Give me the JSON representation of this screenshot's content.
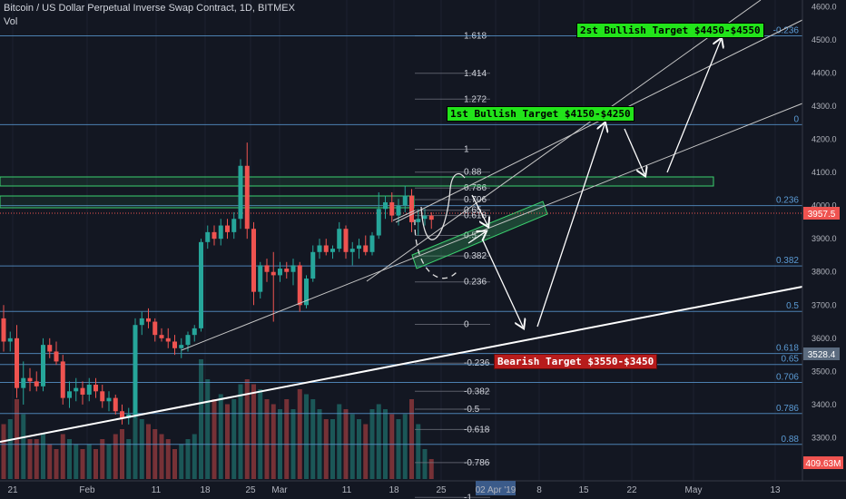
{
  "header": {
    "title": "Bitcoin / US Dollar Perpetual Inverse Swap Contract, 1D, BITMEX",
    "vol_label": "Vol"
  },
  "annotations": {
    "bull2": "2st Bullish Target $4450-$4550",
    "bull1": "1st Bullish Target $4150-$4250",
    "bear": "Bearish Target $3550-$3450"
  },
  "colors": {
    "background": "#131722",
    "up": "#26a69a",
    "down": "#ef5350",
    "fib_line": "#5b9bd5",
    "green_box": "#3bd16f",
    "trendline": "#ffffff"
  },
  "chart_data": {
    "type": "candlestick",
    "symbol": "Bitcoin / US Dollar Perpetual Inverse Swap Contract",
    "timeframe": "1D",
    "exchange": "BITMEX",
    "ylim": [
      3170,
      4620
    ],
    "y_ticks": [
      3300,
      3400,
      3500,
      3600,
      3700,
      3800,
      3900,
      4000,
      4100,
      4200,
      4300,
      4400,
      4500,
      4600
    ],
    "y_tick_labels": [
      "3300.0",
      "3400.0",
      "3500.0",
      "3600.0",
      "3700.0",
      "3800.0",
      "3900.0",
      "4000.0",
      "4100.0",
      "4200.0",
      "4300.0",
      "4400.0",
      "4500.0",
      "4600.0"
    ],
    "x_tick_labels": [
      "21",
      "Feb",
      "11",
      "18",
      "25",
      "Mar",
      "11",
      "18",
      "25",
      "02 Apr '19",
      "8",
      "15",
      "22",
      "May",
      "13"
    ],
    "price_labels": {
      "last": "3957.5",
      "secondary": "3528.4",
      "volume": "409.63M"
    },
    "fib_right": [
      {
        "level": "-0.236",
        "price": 4512
      },
      {
        "level": "0",
        "price": 4244
      },
      {
        "level": "0.236",
        "price": 4000
      },
      {
        "level": "0.382",
        "price": 3818
      },
      {
        "level": "0.5",
        "price": 3681
      },
      {
        "level": "0.618",
        "price": 3554
      },
      {
        "level": "0.65",
        "price": 3521
      },
      {
        "level": "0.706",
        "price": 3467
      },
      {
        "level": "0.786",
        "price": 3373
      },
      {
        "level": "0.88",
        "price": 3280
      }
    ],
    "fib_mid": [
      {
        "level": "1.618",
        "price": 4512
      },
      {
        "level": "1.414",
        "price": 4399
      },
      {
        "level": "1.272",
        "price": 4321
      },
      {
        "level": "1",
        "price": 4170
      },
      {
        "level": "0.88",
        "price": 4101
      },
      {
        "level": "0.786",
        "price": 4053
      },
      {
        "level": "0.706",
        "price": 4018
      },
      {
        "level": "0.65",
        "price": 3986
      },
      {
        "level": "0.618",
        "price": 3970
      },
      {
        "level": "0.5",
        "price": 3910
      },
      {
        "level": "0.382",
        "price": 3848
      },
      {
        "level": "0.236",
        "price": 3770
      },
      {
        "level": "0",
        "price": 3642
      },
      {
        "level": "-0.236",
        "price": 3525
      },
      {
        "level": "-0.382",
        "price": 3440
      },
      {
        "level": "-0.5",
        "price": 3386
      },
      {
        "level": "-0.618",
        "price": 3325
      },
      {
        "level": "-0.786",
        "price": 3225
      },
      {
        "level": "-1",
        "price": 3120
      }
    ],
    "candles": [
      {
        "o": 3660,
        "h": 3700,
        "l": 3560,
        "c": 3590
      },
      {
        "o": 3590,
        "h": 3620,
        "l": 3560,
        "c": 3600
      },
      {
        "o": 3600,
        "h": 3640,
        "l": 3420,
        "c": 3450
      },
      {
        "o": 3450,
        "h": 3530,
        "l": 3400,
        "c": 3480
      },
      {
        "o": 3480,
        "h": 3510,
        "l": 3440,
        "c": 3470
      },
      {
        "o": 3470,
        "h": 3500,
        "l": 3440,
        "c": 3455
      },
      {
        "o": 3455,
        "h": 3600,
        "l": 3440,
        "c": 3580
      },
      {
        "o": 3580,
        "h": 3600,
        "l": 3540,
        "c": 3560
      },
      {
        "o": 3560,
        "h": 3590,
        "l": 3520,
        "c": 3530
      },
      {
        "o": 3530,
        "h": 3550,
        "l": 3400,
        "c": 3420
      },
      {
        "o": 3420,
        "h": 3470,
        "l": 3390,
        "c": 3440
      },
      {
        "o": 3440,
        "h": 3480,
        "l": 3410,
        "c": 3450
      },
      {
        "o": 3450,
        "h": 3470,
        "l": 3400,
        "c": 3430
      },
      {
        "o": 3430,
        "h": 3480,
        "l": 3410,
        "c": 3460
      },
      {
        "o": 3460,
        "h": 3480,
        "l": 3420,
        "c": 3440
      },
      {
        "o": 3440,
        "h": 3460,
        "l": 3390,
        "c": 3410
      },
      {
        "o": 3410,
        "h": 3440,
        "l": 3380,
        "c": 3420
      },
      {
        "o": 3420,
        "h": 3430,
        "l": 3370,
        "c": 3380
      },
      {
        "o": 3380,
        "h": 3400,
        "l": 3340,
        "c": 3360
      },
      {
        "o": 3360,
        "h": 3390,
        "l": 3340,
        "c": 3370
      },
      {
        "o": 3370,
        "h": 3660,
        "l": 3360,
        "c": 3640
      },
      {
        "o": 3640,
        "h": 3680,
        "l": 3610,
        "c": 3660
      },
      {
        "o": 3660,
        "h": 3690,
        "l": 3630,
        "c": 3650
      },
      {
        "o": 3650,
        "h": 3660,
        "l": 3590,
        "c": 3610
      },
      {
        "o": 3610,
        "h": 3630,
        "l": 3590,
        "c": 3600
      },
      {
        "o": 3600,
        "h": 3630,
        "l": 3570,
        "c": 3590
      },
      {
        "o": 3590,
        "h": 3610,
        "l": 3550,
        "c": 3570
      },
      {
        "o": 3570,
        "h": 3600,
        "l": 3540,
        "c": 3580
      },
      {
        "o": 3580,
        "h": 3620,
        "l": 3560,
        "c": 3610
      },
      {
        "o": 3610,
        "h": 3640,
        "l": 3590,
        "c": 3630
      },
      {
        "o": 3630,
        "h": 3900,
        "l": 3620,
        "c": 3890
      },
      {
        "o": 3890,
        "h": 3940,
        "l": 3870,
        "c": 3920
      },
      {
        "o": 3920,
        "h": 3940,
        "l": 3880,
        "c": 3900
      },
      {
        "o": 3900,
        "h": 3960,
        "l": 3880,
        "c": 3940
      },
      {
        "o": 3940,
        "h": 3960,
        "l": 3900,
        "c": 3920
      },
      {
        "o": 3920,
        "h": 3980,
        "l": 3900,
        "c": 3960
      },
      {
        "o": 3960,
        "h": 4140,
        "l": 3930,
        "c": 4120
      },
      {
        "o": 4120,
        "h": 4190,
        "l": 3900,
        "c": 3930
      },
      {
        "o": 3930,
        "h": 3950,
        "l": 3700,
        "c": 3740
      },
      {
        "o": 3740,
        "h": 3830,
        "l": 3720,
        "c": 3820
      },
      {
        "o": 3820,
        "h": 3840,
        "l": 3770,
        "c": 3800
      },
      {
        "o": 3800,
        "h": 3860,
        "l": 3650,
        "c": 3790
      },
      {
        "o": 3790,
        "h": 3830,
        "l": 3770,
        "c": 3810
      },
      {
        "o": 3810,
        "h": 3830,
        "l": 3780,
        "c": 3800
      },
      {
        "o": 3800,
        "h": 3840,
        "l": 3760,
        "c": 3820
      },
      {
        "o": 3820,
        "h": 3830,
        "l": 3680,
        "c": 3700
      },
      {
        "o": 3700,
        "h": 3790,
        "l": 3690,
        "c": 3780
      },
      {
        "o": 3780,
        "h": 3880,
        "l": 3770,
        "c": 3860
      },
      {
        "o": 3860,
        "h": 3900,
        "l": 3840,
        "c": 3880
      },
      {
        "o": 3880,
        "h": 3900,
        "l": 3850,
        "c": 3860
      },
      {
        "o": 3860,
        "h": 3880,
        "l": 3840,
        "c": 3870
      },
      {
        "o": 3870,
        "h": 3950,
        "l": 3860,
        "c": 3930
      },
      {
        "o": 3930,
        "h": 3940,
        "l": 3840,
        "c": 3860
      },
      {
        "o": 3860,
        "h": 3890,
        "l": 3820,
        "c": 3870
      },
      {
        "o": 3870,
        "h": 3900,
        "l": 3840,
        "c": 3880
      },
      {
        "o": 3880,
        "h": 3910,
        "l": 3850,
        "c": 3860
      },
      {
        "o": 3860,
        "h": 3920,
        "l": 3850,
        "c": 3910
      },
      {
        "o": 3910,
        "h": 4040,
        "l": 3900,
        "c": 3990
      },
      {
        "o": 3990,
        "h": 4030,
        "l": 3960,
        "c": 4010
      },
      {
        "o": 4010,
        "h": 4040,
        "l": 3950,
        "c": 3970
      },
      {
        "o": 3970,
        "h": 4020,
        "l": 3940,
        "c": 4000
      },
      {
        "o": 4000,
        "h": 4060,
        "l": 3980,
        "c": 4030
      },
      {
        "o": 4030,
        "h": 4050,
        "l": 3920,
        "c": 3950
      },
      {
        "o": 3950,
        "h": 3990,
        "l": 3910,
        "c": 3960
      },
      {
        "o": 3960,
        "h": 3990,
        "l": 3940,
        "c": 3970
      },
      {
        "o": 3970,
        "h": 3980,
        "l": 3930,
        "c": 3957.5
      }
    ],
    "volume": [
      55,
      60,
      80,
      65,
      40,
      40,
      45,
      35,
      30,
      45,
      40,
      35,
      30,
      35,
      30,
      40,
      35,
      45,
      50,
      40,
      85,
      60,
      55,
      50,
      45,
      40,
      30,
      35,
      40,
      45,
      120,
      100,
      80,
      85,
      75,
      80,
      95,
      100,
      95,
      90,
      80,
      75,
      70,
      80,
      70,
      90,
      85,
      80,
      70,
      60,
      60,
      75,
      70,
      65,
      60,
      55,
      70,
      75,
      70,
      65,
      60,
      65,
      80,
      55,
      30,
      20
    ]
  }
}
